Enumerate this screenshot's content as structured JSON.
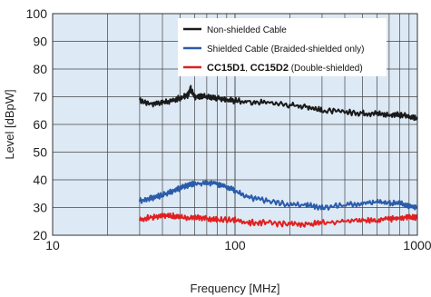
{
  "chart_data": {
    "type": "line",
    "title": "",
    "xlabel": "Frequency [MHz]",
    "ylabel": "Level [dBpW]",
    "xscale": "log",
    "xlim": [
      10,
      1000
    ],
    "ylim": [
      20,
      100
    ],
    "xticks": [
      "10",
      "100",
      "1000"
    ],
    "yticks": [
      "20",
      "30",
      "40",
      "50",
      "60",
      "70",
      "80",
      "90",
      "100"
    ],
    "grid": true,
    "background": "#dde9f5",
    "legend_position": "top-right",
    "series": [
      {
        "name": "Non-shielded Cable",
        "color": "#1a1a1a",
        "x": [
          30,
          35,
          40,
          45,
          50,
          55,
          57,
          60,
          65,
          70,
          80,
          90,
          100,
          120,
          150,
          200,
          250,
          300,
          400,
          500,
          600,
          700,
          800,
          900,
          1000
        ],
        "y": [
          68.5,
          67.5,
          68,
          68.5,
          69.5,
          70.5,
          73,
          70,
          70,
          70,
          69.5,
          69,
          68.5,
          68,
          68,
          67,
          66.5,
          65,
          64.5,
          64,
          64,
          63.5,
          63.5,
          63,
          62
        ]
      },
      {
        "name": "Shielded Cable (Braided-shielded only)",
        "color": "#2a5caa",
        "x": [
          30,
          35,
          40,
          45,
          50,
          55,
          60,
          70,
          80,
          90,
          100,
          120,
          150,
          200,
          250,
          300,
          400,
          500,
          600,
          700,
          800,
          900,
          1000
        ],
        "y": [
          32.5,
          33.5,
          34.5,
          36,
          37,
          38,
          38.5,
          39,
          38.5,
          37.5,
          36,
          33.5,
          32.5,
          31,
          31,
          30,
          31,
          31.5,
          32,
          31.5,
          31.5,
          30.5,
          30
        ]
      },
      {
        "name": "CC15D1, CC15D2 (Double-shielded)",
        "color": "#e02020",
        "x": [
          30,
          35,
          40,
          45,
          50,
          60,
          70,
          80,
          100,
          120,
          150,
          200,
          250,
          300,
          400,
          500,
          600,
          700,
          800,
          900,
          1000
        ],
        "y": [
          25.5,
          26.5,
          27,
          27,
          26.5,
          26.5,
          26,
          25.5,
          25.5,
          24.5,
          24.5,
          24,
          24,
          24.5,
          25,
          25.5,
          25.5,
          26,
          26,
          26.5,
          26.5
        ]
      }
    ],
    "legend": [
      {
        "parts": [
          {
            "text": "Non-shielded Cable",
            "bold": false
          }
        ]
      },
      {
        "parts": [
          {
            "text": "Shielded Cable (Braided-shielded only)",
            "bold": false
          }
        ]
      },
      {
        "parts": [
          {
            "text": "CC15D1",
            "bold": true
          },
          {
            "text": ", ",
            "bold": false
          },
          {
            "text": "CC15D2",
            "bold": true
          },
          {
            "text": " (Double-shielded)",
            "bold": false
          }
        ]
      }
    ]
  }
}
